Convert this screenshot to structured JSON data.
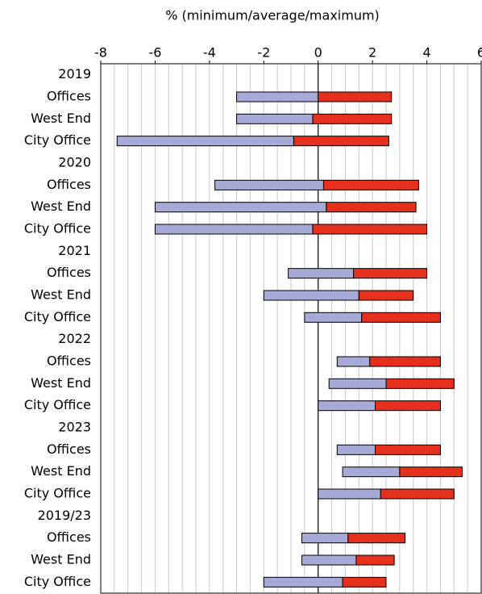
{
  "chart_data": {
    "type": "range-bar",
    "title": "% (minimum/average/maximum)",
    "categories": [
      "2019",
      "Offices",
      "West End",
      "City Office",
      "2020",
      "Offices",
      "West End",
      "City Office",
      "2021",
      "Offices",
      "West End",
      "City Office",
      "2022",
      "Offices",
      "West End",
      "City Office",
      "2023",
      "Offices",
      "West End",
      "City Office",
      "2019/23",
      "Offices",
      "West End",
      "City Office"
    ],
    "minimum": [
      null,
      -3.0,
      -3.0,
      -7.4,
      null,
      -3.8,
      -6.0,
      -6.0,
      null,
      -1.1,
      -2.0,
      -0.5,
      null,
      0.7,
      0.4,
      0.0,
      null,
      0.7,
      0.9,
      0.0,
      null,
      -0.6,
      -0.6,
      -2.0
    ],
    "average": [
      null,
      0.0,
      -0.2,
      -0.9,
      null,
      0.2,
      0.3,
      -0.2,
      null,
      1.3,
      1.5,
      1.6,
      null,
      1.9,
      2.5,
      2.1,
      null,
      2.1,
      3.0,
      2.3,
      null,
      1.1,
      1.4,
      0.9
    ],
    "maximum": [
      null,
      2.7,
      2.7,
      2.6,
      null,
      3.7,
      3.6,
      4.0,
      null,
      4.0,
      3.5,
      4.5,
      null,
      4.5,
      5.0,
      4.5,
      null,
      4.5,
      5.3,
      5.0,
      null,
      3.2,
      2.8,
      2.5
    ],
    "low_color": "#a7a9d6",
    "high_color": "#e5301e",
    "xlim": [
      -8,
      6
    ],
    "xticks": [
      -8,
      -6,
      -4,
      -2,
      0,
      2,
      4,
      6
    ],
    "grid": true,
    "grid_step": 0.5
  }
}
